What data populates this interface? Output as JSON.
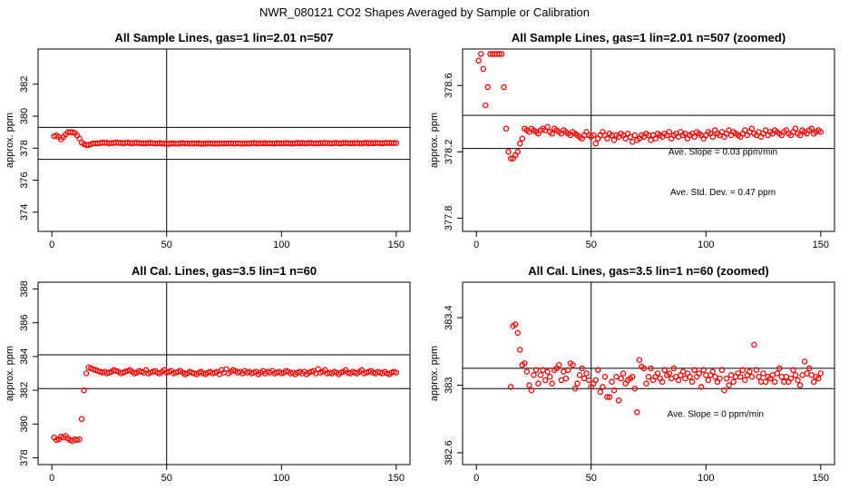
{
  "figure_title": "NWR_080121  CO2 Shapes Averaged by Sample or Calibration",
  "colors": {
    "points": "#ff0000",
    "lines": "#000000",
    "frame": "#000000"
  },
  "chart_data": [
    {
      "type": "scatter",
      "title": "All Sample Lines, gas=1 lin=2.01 n=507",
      "xlabel": "",
      "ylabel": "approx. ppm",
      "xlim": [
        -6,
        156
      ],
      "ylim": [
        372.8,
        384.2
      ],
      "xticks": [
        0,
        50,
        100,
        150
      ],
      "yticks": [
        374,
        376,
        378,
        380,
        382
      ],
      "hlines": [
        379.3,
        377.3
      ],
      "vline": 50,
      "annotations": [],
      "x": [
        1,
        2,
        3,
        4,
        5,
        6,
        7,
        8,
        9,
        10,
        11,
        12,
        13,
        14,
        15,
        16,
        17,
        18,
        19,
        20,
        21,
        22,
        23,
        24,
        25,
        26,
        27,
        28,
        29,
        30,
        31,
        32,
        33,
        34,
        35,
        36,
        37,
        38,
        39,
        40,
        41,
        42,
        43,
        44,
        45,
        46,
        47,
        48,
        49,
        50,
        51,
        52,
        53,
        54,
        55,
        56,
        57,
        58,
        59,
        60,
        61,
        62,
        63,
        64,
        65,
        66,
        67,
        68,
        69,
        70,
        71,
        72,
        73,
        74,
        75,
        76,
        77,
        78,
        79,
        80,
        81,
        82,
        83,
        84,
        85,
        86,
        87,
        88,
        89,
        90,
        91,
        92,
        93,
        94,
        95,
        96,
        97,
        98,
        99,
        100,
        101,
        102,
        103,
        104,
        105,
        106,
        107,
        108,
        109,
        110,
        111,
        112,
        113,
        114,
        115,
        116,
        117,
        118,
        119,
        120,
        121,
        122,
        123,
        124,
        125,
        126,
        127,
        128,
        129,
        130,
        131,
        132,
        133,
        134,
        135,
        136,
        137,
        138,
        139,
        140,
        141,
        142,
        143,
        144,
        145,
        146,
        147,
        148,
        149,
        150
      ],
      "y": [
        378.75,
        378.8,
        378.7,
        378.55,
        378.7,
        378.85,
        379.0,
        379.0,
        379.0,
        378.95,
        378.8,
        378.6,
        378.35,
        378.25,
        378.2,
        378.2,
        378.25,
        378.3,
        378.3,
        378.3,
        378.32,
        378.35,
        378.33,
        378.34,
        378.3,
        378.33,
        378.32,
        378.36,
        378.33,
        378.34,
        378.3,
        378.33,
        378.35,
        378.32,
        378.3,
        378.34,
        378.33,
        378.32,
        378.3,
        378.31,
        378.3,
        378.32,
        378.33,
        378.31,
        378.3,
        378.29,
        378.32,
        378.3,
        378.28,
        378.3,
        378.26,
        378.3,
        378.31,
        378.28,
        378.29,
        378.3,
        378.32,
        378.29,
        378.3,
        378.28,
        378.3,
        378.29,
        378.31,
        378.3,
        378.27,
        378.29,
        378.28,
        378.3,
        378.31,
        378.28,
        378.29,
        378.3,
        378.28,
        378.3,
        378.31,
        378.29,
        378.3,
        378.31,
        378.29,
        378.3,
        378.31,
        378.3,
        378.28,
        378.3,
        378.3,
        378.29,
        378.31,
        378.32,
        378.3,
        378.29,
        378.31,
        378.3,
        378.32,
        378.3,
        378.31,
        378.3,
        378.29,
        378.32,
        378.3,
        378.31,
        378.3,
        378.32,
        378.31,
        378.29,
        378.3,
        378.31,
        378.33,
        378.3,
        378.32,
        378.31,
        378.3,
        378.32,
        378.33,
        378.3,
        378.31,
        378.3,
        378.32,
        378.31,
        378.33,
        378.32,
        378.31,
        378.3,
        378.32,
        378.33,
        378.31,
        378.3,
        378.32,
        378.34,
        378.31,
        378.3,
        378.32,
        378.31,
        378.33,
        378.3,
        378.31,
        378.32,
        378.34,
        378.3,
        378.33,
        378.31,
        378.32,
        378.33,
        378.31,
        378.3,
        378.33,
        378.32,
        378.34,
        378.31,
        378.33,
        378.32
      ]
    },
    {
      "type": "scatter",
      "title": "All Sample Lines, gas=1 lin=2.01 n=507 (zoomed)",
      "xlabel": "",
      "ylabel": "approx. ppm",
      "xlim": [
        -6,
        156
      ],
      "ylim": [
        377.72,
        378.82
      ],
      "xticks": [
        0,
        50,
        100,
        150
      ],
      "yticks": [
        377.8,
        378.2,
        378.6
      ],
      "hlines": [
        378.42,
        378.22
      ],
      "vline": 50,
      "annotations": [
        "Ave. Slope =  0.03  ppm/min",
        "Ave. Std. Dev. =  0.47  ppm"
      ],
      "x": [
        1,
        2,
        3,
        4,
        5,
        6,
        7,
        8,
        9,
        10,
        11,
        12,
        13,
        14,
        15,
        16,
        17,
        18,
        19,
        20,
        21,
        22,
        23,
        24,
        25,
        26,
        27,
        28,
        29,
        30,
        31,
        32,
        33,
        34,
        35,
        36,
        37,
        38,
        39,
        40,
        41,
        42,
        43,
        44,
        45,
        46,
        47,
        48,
        49,
        50,
        51,
        52,
        53,
        54,
        55,
        56,
        57,
        58,
        59,
        60,
        61,
        62,
        63,
        64,
        65,
        66,
        67,
        68,
        69,
        70,
        71,
        72,
        73,
        74,
        75,
        76,
        77,
        78,
        79,
        80,
        81,
        82,
        83,
        84,
        85,
        86,
        87,
        88,
        89,
        90,
        91,
        92,
        93,
        94,
        95,
        96,
        97,
        98,
        99,
        100,
        101,
        102,
        103,
        104,
        105,
        106,
        107,
        108,
        109,
        110,
        111,
        112,
        113,
        114,
        115,
        116,
        117,
        118,
        119,
        120,
        121,
        122,
        123,
        124,
        125,
        126,
        127,
        128,
        129,
        130,
        131,
        132,
        133,
        134,
        135,
        136,
        137,
        138,
        139,
        140,
        141,
        142,
        143,
        144,
        145,
        146,
        147,
        148,
        149,
        150
      ],
      "y": [
        378.75,
        378.79,
        378.7,
        378.48,
        378.59,
        378.79,
        378.79,
        378.79,
        378.79,
        378.79,
        378.79,
        378.59,
        378.34,
        378.2,
        378.16,
        378.16,
        378.18,
        378.2,
        378.25,
        378.28,
        378.34,
        378.33,
        378.32,
        378.34,
        378.33,
        378.32,
        378.31,
        378.33,
        378.34,
        378.33,
        378.35,
        378.32,
        378.31,
        378.34,
        378.33,
        378.32,
        378.31,
        378.33,
        378.32,
        378.31,
        378.3,
        378.32,
        378.31,
        378.3,
        378.29,
        378.28,
        378.3,
        378.32,
        378.3,
        378.29,
        378.3,
        378.25,
        378.28,
        378.3,
        378.32,
        378.3,
        378.28,
        378.31,
        378.3,
        378.27,
        378.3,
        378.29,
        378.31,
        378.3,
        378.28,
        378.31,
        378.29,
        378.26,
        378.3,
        378.27,
        378.28,
        378.3,
        378.29,
        378.31,
        378.3,
        378.27,
        378.3,
        378.28,
        378.31,
        378.3,
        378.29,
        378.31,
        378.3,
        378.32,
        378.28,
        378.3,
        378.31,
        378.29,
        378.32,
        378.3,
        378.31,
        378.28,
        378.3,
        378.31,
        378.29,
        378.32,
        378.31,
        378.3,
        378.28,
        378.3,
        378.32,
        378.31,
        378.29,
        378.33,
        378.31,
        378.3,
        378.32,
        378.29,
        378.31,
        378.33,
        378.3,
        378.32,
        378.31,
        378.3,
        378.29,
        378.31,
        378.33,
        378.3,
        378.32,
        378.34,
        378.31,
        378.3,
        378.32,
        378.29,
        378.31,
        378.33,
        378.3,
        378.32,
        378.31,
        378.33,
        378.32,
        378.31,
        378.3,
        378.32,
        378.33,
        378.31,
        378.3,
        378.32,
        378.34,
        378.31,
        378.3,
        378.33,
        378.32,
        378.31,
        378.33,
        378.34,
        378.31,
        378.32,
        378.33,
        378.32
      ]
    },
    {
      "type": "scatter",
      "title": "All Cal. Lines, gas=3.5 lin=1 n=60",
      "xlabel": "",
      "ylabel": "approx. ppm",
      "xlim": [
        -6,
        156
      ],
      "ylim": [
        377.6,
        388.4
      ],
      "xticks": [
        0,
        50,
        100,
        150
      ],
      "yticks": [
        378,
        380,
        382,
        384,
        386,
        388
      ],
      "hlines": [
        384.1,
        382.1
      ],
      "vline": 50,
      "annotations": [],
      "x": [
        1,
        2,
        3,
        4,
        5,
        6,
        7,
        8,
        9,
        10,
        11,
        12,
        13,
        14,
        15,
        16,
        17,
        18,
        19,
        20,
        21,
        22,
        23,
        24,
        25,
        26,
        27,
        28,
        29,
        30,
        31,
        32,
        33,
        34,
        35,
        36,
        37,
        38,
        39,
        40,
        41,
        42,
        43,
        44,
        45,
        46,
        47,
        48,
        49,
        50,
        51,
        52,
        53,
        54,
        55,
        56,
        57,
        58,
        59,
        60,
        61,
        62,
        63,
        64,
        65,
        66,
        67,
        68,
        69,
        70,
        71,
        72,
        73,
        74,
        75,
        76,
        77,
        78,
        79,
        80,
        81,
        82,
        83,
        84,
        85,
        86,
        87,
        88,
        89,
        90,
        91,
        92,
        93,
        94,
        95,
        96,
        97,
        98,
        99,
        100,
        101,
        102,
        103,
        104,
        105,
        106,
        107,
        108,
        109,
        110,
        111,
        112,
        113,
        114,
        115,
        116,
        117,
        118,
        119,
        120,
        121,
        122,
        123,
        124,
        125,
        126,
        127,
        128,
        129,
        130,
        131,
        132,
        133,
        134,
        135,
        136,
        137,
        138,
        139,
        140,
        141,
        142,
        143,
        144,
        145,
        146,
        147,
        148,
        149,
        150
      ],
      "y": [
        379.2,
        379.05,
        379.1,
        379.25,
        379.2,
        379.3,
        379.15,
        379.05,
        379.0,
        379.1,
        379.05,
        379.1,
        380.3,
        382.0,
        383.0,
        383.35,
        383.3,
        383.25,
        383.2,
        383.15,
        383.1,
        383.05,
        383.1,
        383.0,
        383.05,
        383.1,
        383.2,
        383.15,
        383.1,
        383.0,
        383.05,
        383.1,
        383.15,
        383.2,
        383.1,
        383.0,
        383.05,
        383.15,
        383.1,
        383.05,
        383.2,
        383.0,
        383.05,
        383.1,
        383.15,
        383.05,
        383.0,
        383.1,
        383.2,
        383.05,
        383.1,
        383.15,
        383.0,
        383.05,
        383.1,
        383.15,
        383.05,
        382.95,
        383.0,
        383.1,
        383.05,
        383.0,
        382.95,
        383.05,
        383.1,
        383.0,
        382.95,
        383.05,
        383.1,
        383.0,
        383.05,
        383.1,
        382.95,
        383.2,
        383.05,
        383.25,
        383.0,
        383.1,
        383.2,
        383.15,
        383.05,
        383.1,
        383.0,
        383.15,
        383.05,
        383.1,
        383.0,
        383.05,
        383.1,
        382.95,
        383.05,
        383.15,
        383.0,
        383.1,
        383.05,
        383.15,
        383.0,
        383.05,
        383.1,
        383.0,
        383.05,
        383.15,
        383.1,
        383.0,
        383.05,
        382.95,
        383.05,
        383.1,
        383.0,
        383.1,
        382.95,
        383.05,
        383.1,
        383.15,
        383.0,
        383.25,
        383.05,
        383.1,
        383.2,
        383.0,
        383.05,
        383.0,
        383.1,
        383.05,
        382.95,
        383.05,
        383.1,
        383.2,
        383.05,
        383.0,
        383.1,
        383.05,
        383.0,
        383.1,
        383.2,
        383.0,
        383.05,
        383.1,
        383.15,
        383.05,
        383.0,
        383.1,
        383.05,
        383.0,
        383.1,
        383.0,
        382.95,
        383.05,
        383.1,
        383.05
      ]
    },
    {
      "type": "scatter",
      "title": "All Cal. Lines, gas=3.5 lin=1 n=60 (zoomed)",
      "xlabel": "",
      "ylabel": "approx. ppm",
      "xlim": [
        -6,
        156
      ],
      "ylim": [
        382.53,
        383.61
      ],
      "xticks": [
        0,
        50,
        100,
        150
      ],
      "yticks": [
        382.6,
        383.0,
        383.4
      ],
      "hlines": [
        383.1,
        382.98
      ],
      "vline": 50,
      "annotations": [
        "Ave. Slope =  0  ppm/min"
      ],
      "x": [
        15,
        16,
        17,
        18,
        19,
        20,
        21,
        22,
        23,
        24,
        25,
        26,
        27,
        28,
        29,
        30,
        31,
        32,
        33,
        34,
        35,
        36,
        37,
        38,
        39,
        40,
        41,
        42,
        43,
        44,
        45,
        46,
        47,
        48,
        49,
        50,
        51,
        52,
        53,
        54,
        55,
        56,
        57,
        58,
        59,
        60,
        61,
        62,
        63,
        64,
        65,
        66,
        67,
        68,
        69,
        70,
        71,
        72,
        73,
        74,
        75,
        76,
        77,
        78,
        79,
        80,
        81,
        82,
        83,
        84,
        85,
        86,
        87,
        88,
        89,
        90,
        91,
        92,
        93,
        94,
        95,
        96,
        97,
        98,
        99,
        100,
        101,
        102,
        103,
        104,
        105,
        106,
        107,
        108,
        109,
        110,
        111,
        112,
        113,
        114,
        115,
        116,
        117,
        118,
        119,
        120,
        121,
        122,
        123,
        124,
        125,
        126,
        127,
        128,
        129,
        130,
        131,
        132,
        133,
        134,
        135,
        136,
        137,
        138,
        139,
        140,
        141,
        142,
        143,
        144,
        145,
        146,
        147,
        148,
        149,
        150
      ],
      "y": [
        382.99,
        383.35,
        383.36,
        383.31,
        383.21,
        383.12,
        383.13,
        383.08,
        383.0,
        382.97,
        383.06,
        383.09,
        383.01,
        383.06,
        383.09,
        383.03,
        383.08,
        383.05,
        383.01,
        383.09,
        383.1,
        383.12,
        383.03,
        383.08,
        383.04,
        383.09,
        383.13,
        383.12,
        382.98,
        383.01,
        383.06,
        383.1,
        383.04,
        383.07,
        383.03,
        382.99,
        383.01,
        383.03,
        383.09,
        382.96,
        382.99,
        383.05,
        382.93,
        382.93,
        383.02,
        382.97,
        383.05,
        382.91,
        383.04,
        383.07,
        383.01,
        383.03,
        383.04,
        383.05,
        382.98,
        382.84,
        383.15,
        383.11,
        383.1,
        383.01,
        383.05,
        383.1,
        383.03,
        383.05,
        383.07,
        383.04,
        383.02,
        383.09,
        383.06,
        383.07,
        383.04,
        383.1,
        383.05,
        383.03,
        383.06,
        383.08,
        383.04,
        383.07,
        383.05,
        383.02,
        383.09,
        383.05,
        383.07,
        382.99,
        383.09,
        383.06,
        383.03,
        383.06,
        383.08,
        383.05,
        383.02,
        383.04,
        383.09,
        382.97,
        383.04,
        383.0,
        383.06,
        383.02,
        383.05,
        383.07,
        383.05,
        383.09,
        383.03,
        383.06,
        383.08,
        383.05,
        383.24,
        383.09,
        383.05,
        383.02,
        383.07,
        383.02,
        383.05,
        383.04,
        383.06,
        383.02,
        383.07,
        383.1,
        383.05,
        383.02,
        383.05,
        383.02,
        383.04,
        383.09,
        383.06,
        383.03,
        383.0,
        383.06,
        383.14,
        383.07,
        383.1,
        383.06,
        383.02,
        383.05,
        383.04,
        383.07
      ]
    }
  ]
}
